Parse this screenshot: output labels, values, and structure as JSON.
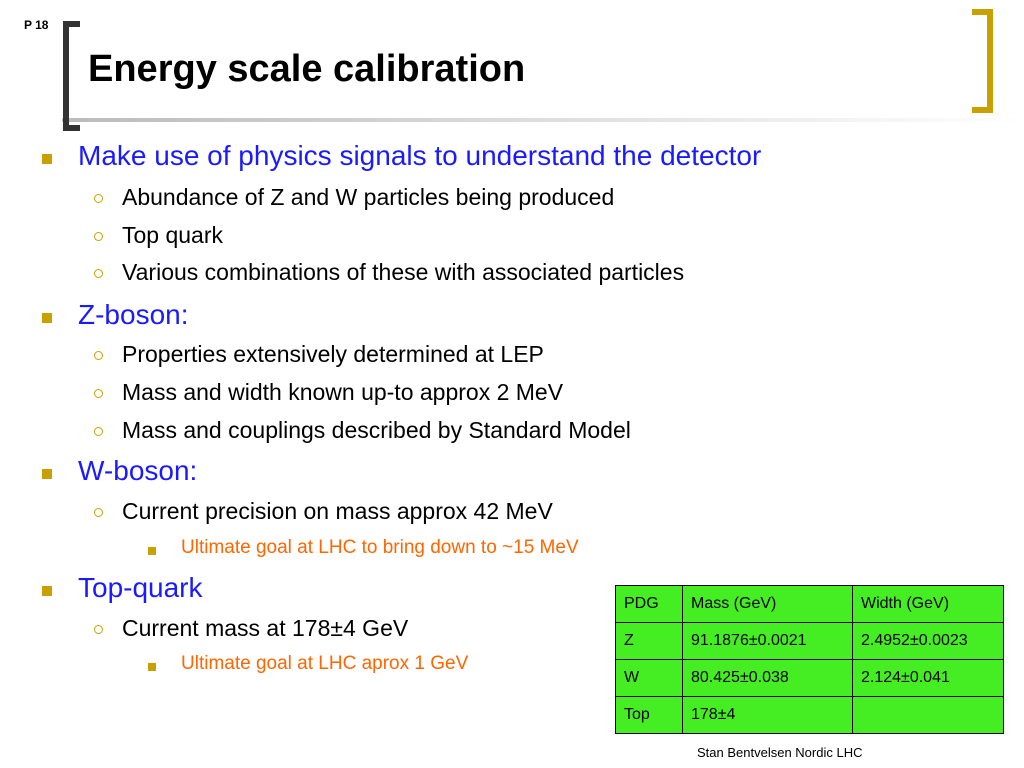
{
  "page_label": "P 18",
  "title": "Energy scale calibration",
  "bullets": [
    {
      "text": "Make use of physics signals to understand the detector",
      "sub": [
        {
          "text": "Abundance of Z and W particles being produced"
        },
        {
          "text": "Top quark"
        },
        {
          "text": "Various combinations of these with associated particles"
        }
      ]
    },
    {
      "text": "Z-boson:",
      "sub": [
        {
          "text": "Properties extensively determined at LEP"
        },
        {
          "text": "Mass and width known up-to approx 2 MeV"
        },
        {
          "text": "Mass and couplings described by Standard Model"
        }
      ]
    },
    {
      "text": "W-boson:",
      "sub": [
        {
          "text": "Current precision on mass approx 42 MeV",
          "sub": [
            {
              "text": "Ultimate goal at LHC to bring down to ~15 MeV"
            }
          ]
        }
      ]
    },
    {
      "text": "Top-quark",
      "sub": [
        {
          "text": "Current mass at 178±4 GeV",
          "sub": [
            {
              "text": "Ultimate goal at LHC aprox 1 GeV"
            }
          ]
        }
      ]
    }
  ],
  "table": {
    "header": [
      "PDG",
      "Mass (GeV)",
      "Width (GeV)"
    ],
    "rows": [
      [
        "Z",
        "91.1876±0.0021",
        "2.4952±0.0023"
      ],
      [
        "W",
        "80.425±0.038",
        "2.124±0.041"
      ],
      [
        "Top",
        "178±4"
      ]
    ]
  },
  "footer": "Stan Bentvelsen Nordic LHC"
}
